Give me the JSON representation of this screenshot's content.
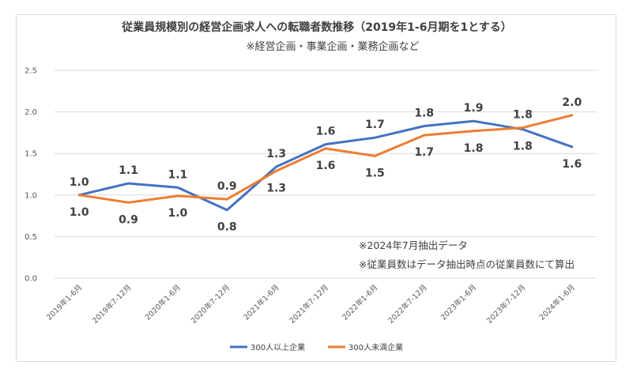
{
  "chart_data": {
    "type": "line",
    "title": "従業員規模別の経営企画求人への転職者数推移（2019年1-6月期を1とする）",
    "subtitle": "※経営企画・事業企画・業務企画など",
    "categories": [
      "2019年1-6月",
      "2019年7-12月",
      "2020年1-6月",
      "2020年7-12月",
      "2021年1-6月",
      "2021年7-12月",
      "2022年1-6月",
      "2022年7-12月",
      "2023年1-6月",
      "2023年7-12月",
      "2024年1-6月"
    ],
    "y_ticks": [
      "0.0",
      "0.5",
      "1.0",
      "1.5",
      "2.0",
      "2.5"
    ],
    "ylim": [
      0,
      2.5
    ],
    "series": [
      {
        "name": "300人以上企業",
        "color": "#4472c4",
        "values": [
          1.0,
          1.14,
          1.09,
          0.82,
          1.34,
          1.61,
          1.69,
          1.83,
          1.89,
          1.79,
          1.58
        ],
        "labels": [
          "1.0",
          "1.1",
          "1.1",
          "0.8",
          "1.3",
          "1.6",
          "1.7",
          "1.8",
          "1.9",
          "1.8",
          "1.6"
        ]
      },
      {
        "name": "300人未満企業",
        "color": "#ed7d31",
        "values": [
          1.0,
          0.91,
          0.99,
          0.95,
          1.29,
          1.56,
          1.47,
          1.72,
          1.77,
          1.81,
          1.96
        ],
        "labels": [
          "1.0",
          "0.9",
          "1.0",
          "0.9",
          "1.3",
          "1.6",
          "1.5",
          "1.7",
          "1.8",
          "1.8",
          "2.0"
        ]
      }
    ],
    "notes": [
      "※2024年7月抽出データ",
      "※従業員数はデータ抽出時点の従業員数にて算出"
    ],
    "legend": "bottom"
  }
}
